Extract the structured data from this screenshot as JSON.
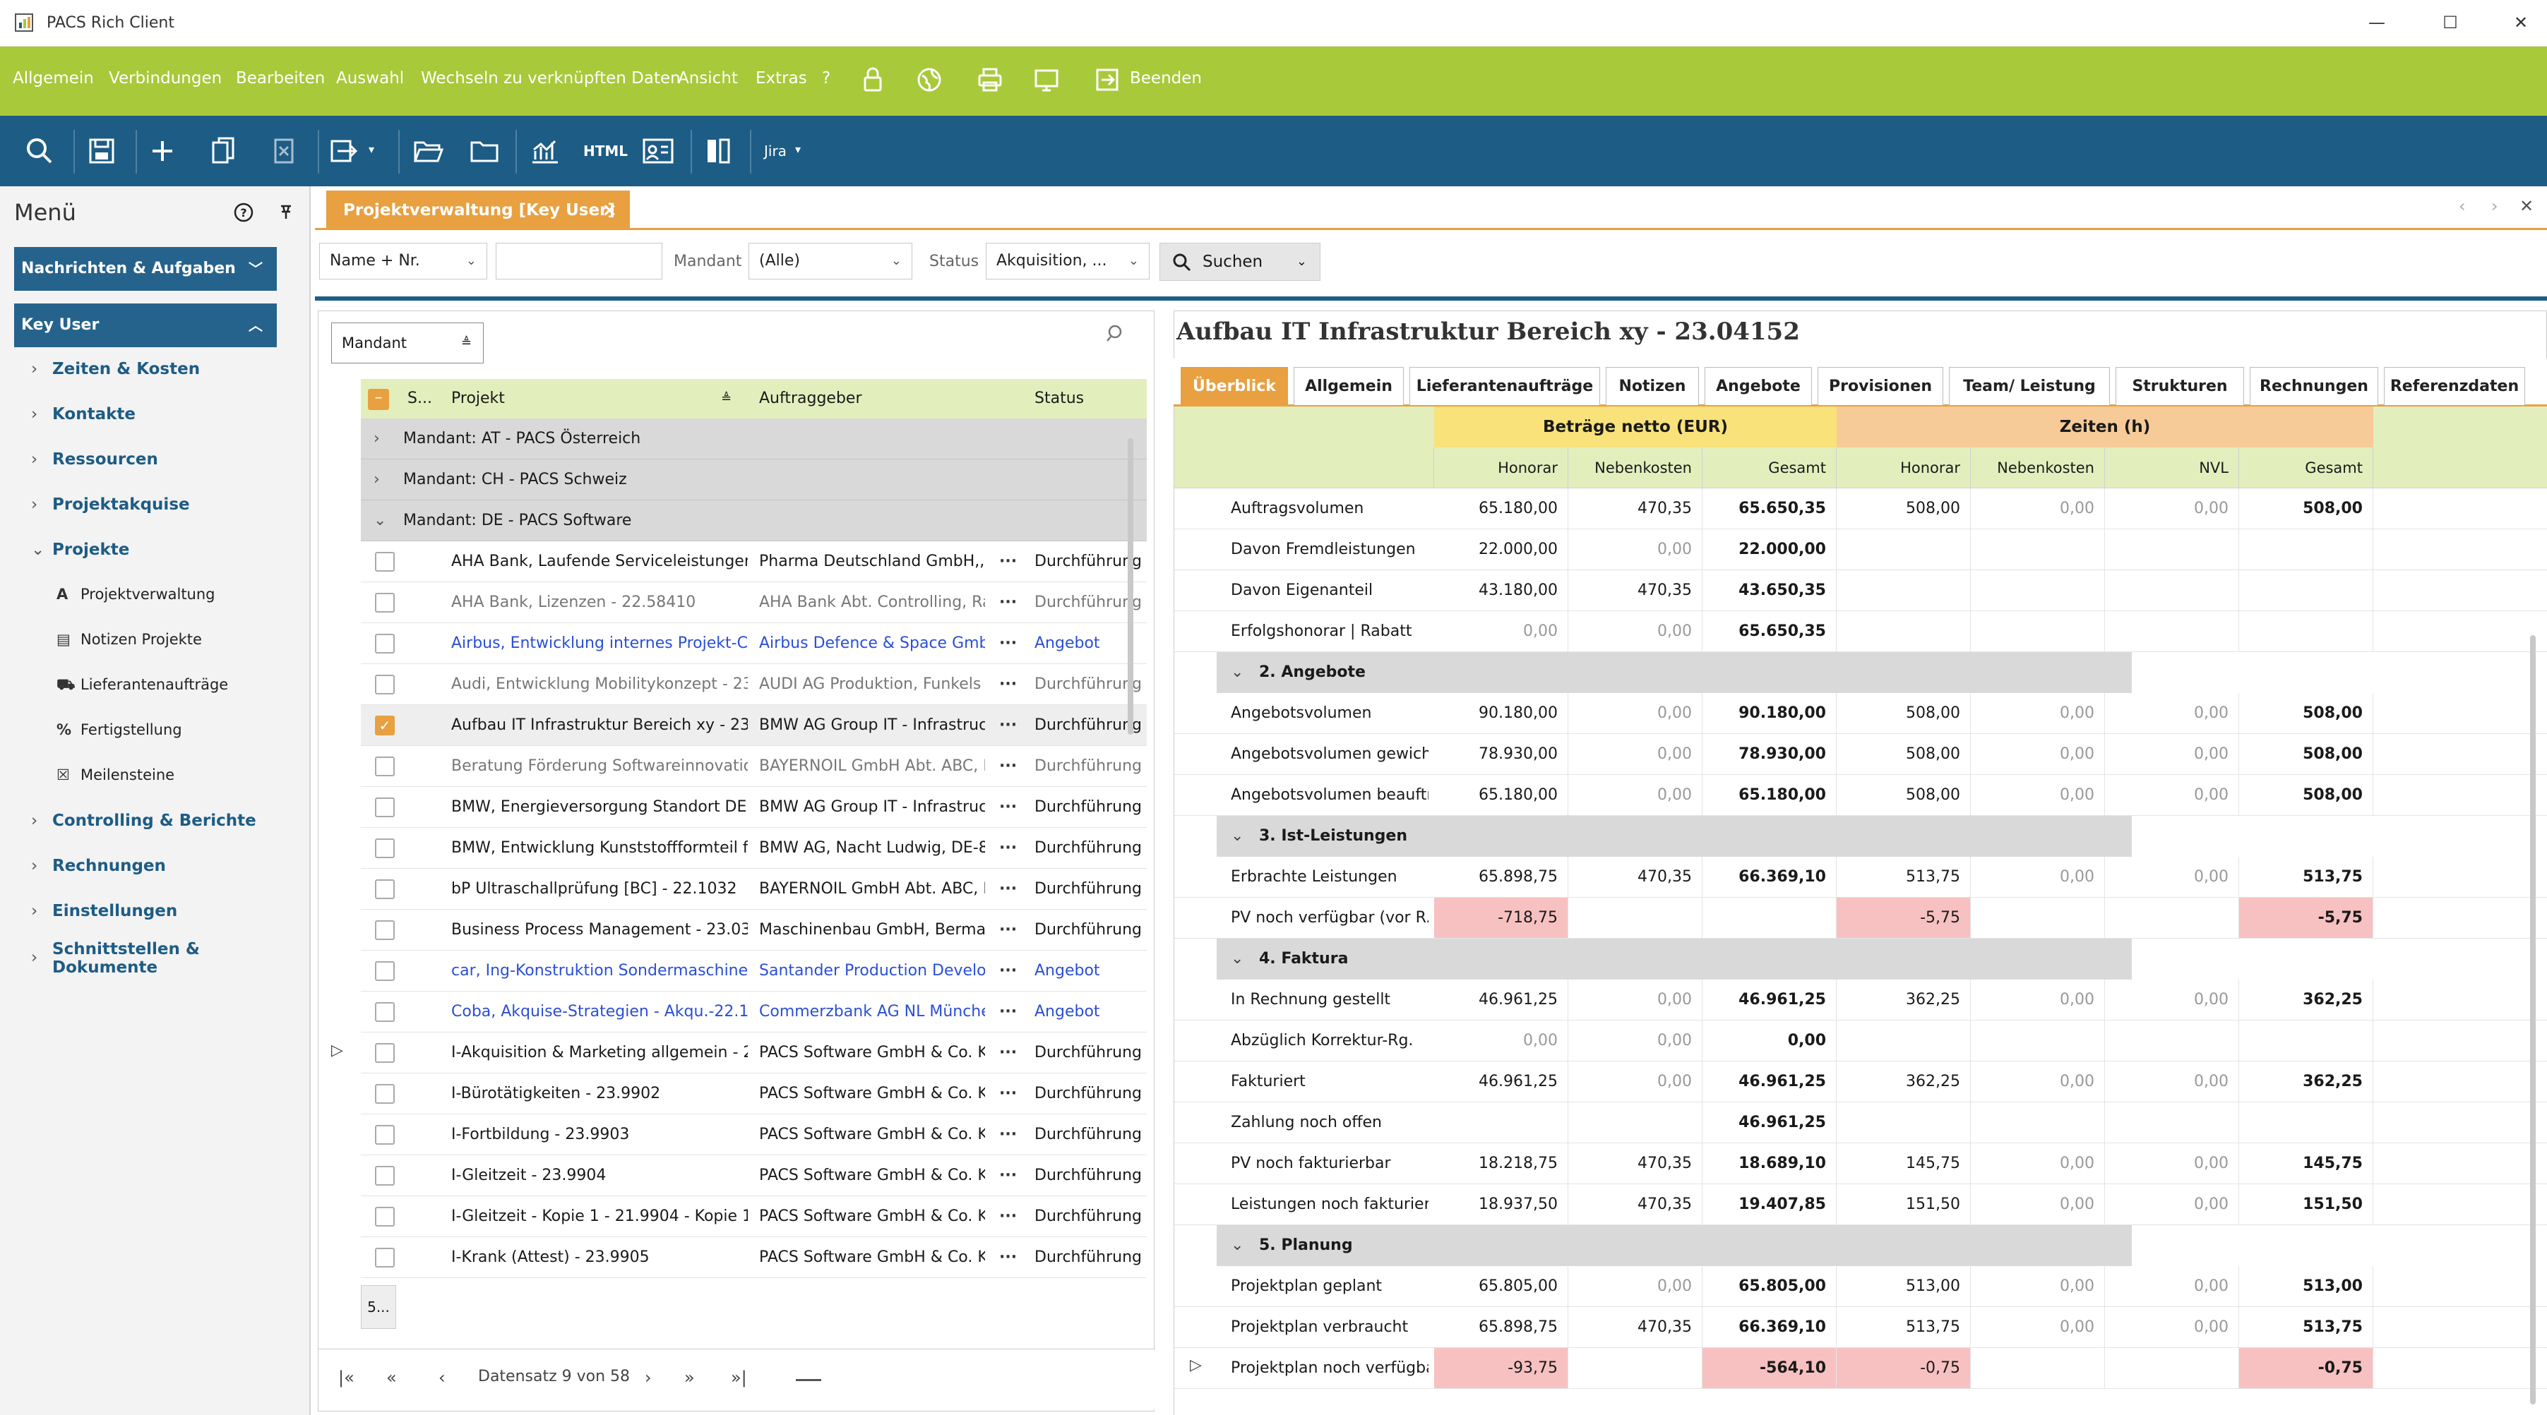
{
  "window": {
    "title": "PACS Rich Client",
    "controls": [
      "—",
      "☐",
      "✕"
    ]
  },
  "menu": {
    "items": [
      "Allgemein",
      "Verbindungen",
      "Bearbeiten",
      "Auswahl",
      "Wechseln zu verknüpften Daten",
      "Ansicht",
      "Extras",
      "?"
    ],
    "exit_label": "Beenden"
  },
  "toolbar": {
    "html_label": "HTML",
    "jira_label": "Jira"
  },
  "sidebar": {
    "title": "Menü",
    "sections": [
      {
        "label": "Nachrichten & Aufgaben"
      },
      {
        "label": "Key User"
      }
    ],
    "items": [
      {
        "label": "Zeiten & Kosten"
      },
      {
        "label": "Kontakte"
      },
      {
        "label": "Ressourcen"
      },
      {
        "label": "Projektakquise"
      },
      {
        "label": "Projekte"
      }
    ],
    "subitems": [
      {
        "label": "Projektverwaltung",
        "icon": "A"
      },
      {
        "label": "Notizen Projekte",
        "icon": "▤"
      },
      {
        "label": "Lieferantenaufträge",
        "icon": "⛟"
      },
      {
        "label": "Fertigstellung",
        "icon": "%"
      },
      {
        "label": "Meilensteine",
        "icon": "☒"
      }
    ],
    "items2": [
      {
        "label": "Controlling & Berichte"
      },
      {
        "label": "Rechnungen"
      },
      {
        "label": "Einstellungen"
      },
      {
        "label": "Schnittstellen &"
      },
      {
        "label": "Dokumente"
      }
    ]
  },
  "tab": {
    "label": "Projektverwaltung [Key User]"
  },
  "filters": {
    "field1": "Name + Nr.",
    "mandant_label": "Mandant",
    "mandant_value": "(Alle)",
    "status_label": "Status",
    "status_value": "Akquisition, ...",
    "search_label": "Suchen"
  },
  "left": {
    "group_filter": "Mandant",
    "headers": {
      "s": "S...",
      "projekt": "Projekt",
      "auftraggeber": "Auftraggeber",
      "status": "Status"
    },
    "groups": [
      "Mandant: AT - PACS Österreich",
      "Mandant: CH - PACS Schweiz",
      "Mandant: DE - PACS Software"
    ],
    "rows": [
      {
        "projekt": "AHA Bank, Laufende Serviceleistungen -...",
        "auftraggeber": "Pharma Deutschland GmbH,, D...",
        "status": "Durchführung",
        "tone": "normal"
      },
      {
        "projekt": "AHA Bank, Lizenzen - 22.58410",
        "auftraggeber": "AHA Bank Abt. Controlling, Ra...",
        "status": "Durchführung",
        "tone": "grey"
      },
      {
        "projekt": "Airbus, Entwicklung internes Projekt-Co...",
        "auftraggeber": "Airbus Defence & Space GmbH,...",
        "status": "Angebot",
        "tone": "blue"
      },
      {
        "projekt": "Audi, Entwicklung Mobilitykonzept - 23.0...",
        "auftraggeber": "AUDI AG Produktion, Funkels M...",
        "status": "Durchführung",
        "tone": "grey"
      },
      {
        "projekt": "Aufbau IT Infrastruktur Bereich xy - 23....",
        "auftraggeber": "BMW AG Group IT - Infrastruct...",
        "status": "Durchführung",
        "tone": "normal",
        "selected": true
      },
      {
        "projekt": "Beratung Förderung Softwareinnovation...",
        "auftraggeber": "BAYERNOIL GmbH Abt. ABC, R...",
        "status": "Durchführung",
        "tone": "grey"
      },
      {
        "projekt": "BMW, Energieversorgung Standort DEF - ...",
        "auftraggeber": "BMW AG Group IT - Infrastruct...",
        "status": "Durchführung",
        "tone": "normal"
      },
      {
        "projekt": "BMW, Entwicklung Kunststoffformteil für...",
        "auftraggeber": "BMW AG, Nacht Ludwig, DE-80...",
        "status": "Durchführung",
        "tone": "normal"
      },
      {
        "projekt": "bP Ultraschallprüfung [BC] - 22.1032",
        "auftraggeber": "BAYERNOIL GmbH Abt. ABC, R...",
        "status": "Durchführung",
        "tone": "normal"
      },
      {
        "projekt": "Business Process Management - 23.03982",
        "auftraggeber": "Maschinenbau GmbH, Bermann...",
        "status": "Durchführung",
        "tone": "normal"
      },
      {
        "projekt": "car, Ing-Konstruktion Sondermaschine [...",
        "auftraggeber": "Santander Production Develop...",
        "status": "Angebot",
        "tone": "blue"
      },
      {
        "projekt": "Coba, Akquise-Strategien - Akqu.-22.122",
        "auftraggeber": "Commerzbank AG NL München,...",
        "status": "Angebot",
        "tone": "blue"
      },
      {
        "projekt": "I-Akquisition & Marketing allgemein - 23....",
        "auftraggeber": "PACS Software GmbH & Co. KG...",
        "status": "Durchführung",
        "tone": "normal"
      },
      {
        "projekt": "I-Bürotätigkeiten - 23.9902",
        "auftraggeber": "PACS Software GmbH & Co. KG...",
        "status": "Durchführung",
        "tone": "normal"
      },
      {
        "projekt": "I-Fortbildung - 23.9903",
        "auftraggeber": "PACS Software GmbH & Co. KG...",
        "status": "Durchführung",
        "tone": "normal"
      },
      {
        "projekt": "I-Gleitzeit - 23.9904",
        "auftraggeber": "PACS Software GmbH & Co. KG...",
        "status": "Durchführung",
        "tone": "normal"
      },
      {
        "projekt": "I-Gleitzeit - Kopie 1 - 21.9904 - Kopie 1",
        "auftraggeber": "PACS Software GmbH & Co. KG...",
        "status": "Durchführung",
        "tone": "normal"
      },
      {
        "projekt": "I-Krank (Attest) - 23.9905",
        "auftraggeber": "PACS Software GmbH & Co. KG...",
        "status": "Durchführung",
        "tone": "normal"
      }
    ],
    "footer_count": "5...",
    "pager": {
      "text": "Datensatz 9 von 58"
    }
  },
  "right": {
    "title": "Aufbau IT Infrastruktur Bereich xy - 23.04152",
    "tabs": [
      "Überblick",
      "Allgemein",
      "Lieferantenaufträge",
      "Notizen",
      "Angebote",
      "Provisionen",
      "Team/ Leistung",
      "Strukturen",
      "Rechnungen",
      "Referenzdaten"
    ],
    "group_headers": {
      "betraege": "Beträge netto (EUR)",
      "zeiten": "Zeiten (h)"
    },
    "col_headers": [
      "Honorar",
      "Nebenkosten",
      "Gesamt",
      "Honorar",
      "Nebenkosten",
      "NVL",
      "Gesamt"
    ],
    "colors": {
      "betraege": "#f9e27a",
      "zeiten": "#f6cb98",
      "negative": "#f7c1c1",
      "accent": "#e8a040"
    },
    "blocks": [
      {
        "section": "",
        "rows": [
          {
            "label": "Auftragsvolumen",
            "vals": [
              "65.180,00",
              "470,35",
              "65.650,35",
              "508,00",
              "0,00",
              "0,00",
              "508,00"
            ]
          },
          {
            "label": "Davon Fremdleistungen",
            "vals": [
              "22.000,00",
              "0,00",
              "22.000,00",
              "",
              "",
              "",
              ""
            ]
          },
          {
            "label": "Davon Eigenanteil",
            "vals": [
              "43.180,00",
              "470,35",
              "43.650,35",
              "",
              "",
              "",
              ""
            ]
          },
          {
            "label": "Erfolgshonorar | Rabatt",
            "vals": [
              "0,00",
              "0,00",
              "65.650,35",
              "",
              "",
              "",
              ""
            ]
          }
        ]
      },
      {
        "section": "2. Angebote",
        "rows": [
          {
            "label": "Angebotsvolumen",
            "vals": [
              "90.180,00",
              "0,00",
              "90.180,00",
              "508,00",
              "0,00",
              "0,00",
              "508,00"
            ]
          },
          {
            "label": "Angebotsvolumen gewicht...",
            "vals": [
              "78.930,00",
              "0,00",
              "78.930,00",
              "508,00",
              "0,00",
              "0,00",
              "508,00"
            ]
          },
          {
            "label": "Angebotsvolumen beauftr...",
            "vals": [
              "65.180,00",
              "0,00",
              "65.180,00",
              "508,00",
              "0,00",
              "0,00",
              "508,00"
            ]
          }
        ]
      },
      {
        "section": "3. Ist-Leistungen",
        "rows": [
          {
            "label": "Erbrachte Leistungen",
            "vals": [
              "65.898,75",
              "470,35",
              "66.369,10",
              "513,75",
              "0,00",
              "0,00",
              "513,75"
            ]
          },
          {
            "label": "PV noch verfügbar (vor R...",
            "vals": [
              "-718,75",
              "",
              "",
              "-5,75",
              "",
              "",
              "-5,75"
            ]
          }
        ]
      },
      {
        "section": "4. Faktura",
        "rows": [
          {
            "label": "In Rechnung gestellt",
            "vals": [
              "46.961,25",
              "0,00",
              "46.961,25",
              "362,25",
              "0,00",
              "0,00",
              "362,25"
            ]
          },
          {
            "label": "Abzüglich Korrektur-Rg.",
            "vals": [
              "0,00",
              "0,00",
              "0,00",
              "",
              "",
              "",
              ""
            ]
          },
          {
            "label": "Fakturiert",
            "vals": [
              "46.961,25",
              "0,00",
              "46.961,25",
              "362,25",
              "0,00",
              "0,00",
              "362,25"
            ]
          },
          {
            "label": "Zahlung noch offen",
            "vals": [
              "",
              "",
              "46.961,25",
              "",
              "",
              "",
              ""
            ]
          },
          {
            "label": "PV noch fakturierbar",
            "vals": [
              "18.218,75",
              "470,35",
              "18.689,10",
              "145,75",
              "0,00",
              "0,00",
              "145,75"
            ]
          },
          {
            "label": "Leistungen noch fakturier...",
            "vals": [
              "18.937,50",
              "470,35",
              "19.407,85",
              "151,50",
              "0,00",
              "0,00",
              "151,50"
            ]
          }
        ]
      },
      {
        "section": "5. Planung",
        "rows": [
          {
            "label": "Projektplan geplant",
            "vals": [
              "65.805,00",
              "0,00",
              "65.805,00",
              "513,00",
              "0,00",
              "0,00",
              "513,00"
            ]
          },
          {
            "label": "Projektplan verbraucht",
            "vals": [
              "65.898,75",
              "470,35",
              "66.369,10",
              "513,75",
              "0,00",
              "0,00",
              "513,75"
            ]
          },
          {
            "label": "Projektplan noch verfügbar",
            "vals": [
              "-93,75",
              "",
              "-564,10",
              "-0,75",
              "",
              "",
              "-0,75"
            ]
          }
        ]
      }
    ]
  }
}
